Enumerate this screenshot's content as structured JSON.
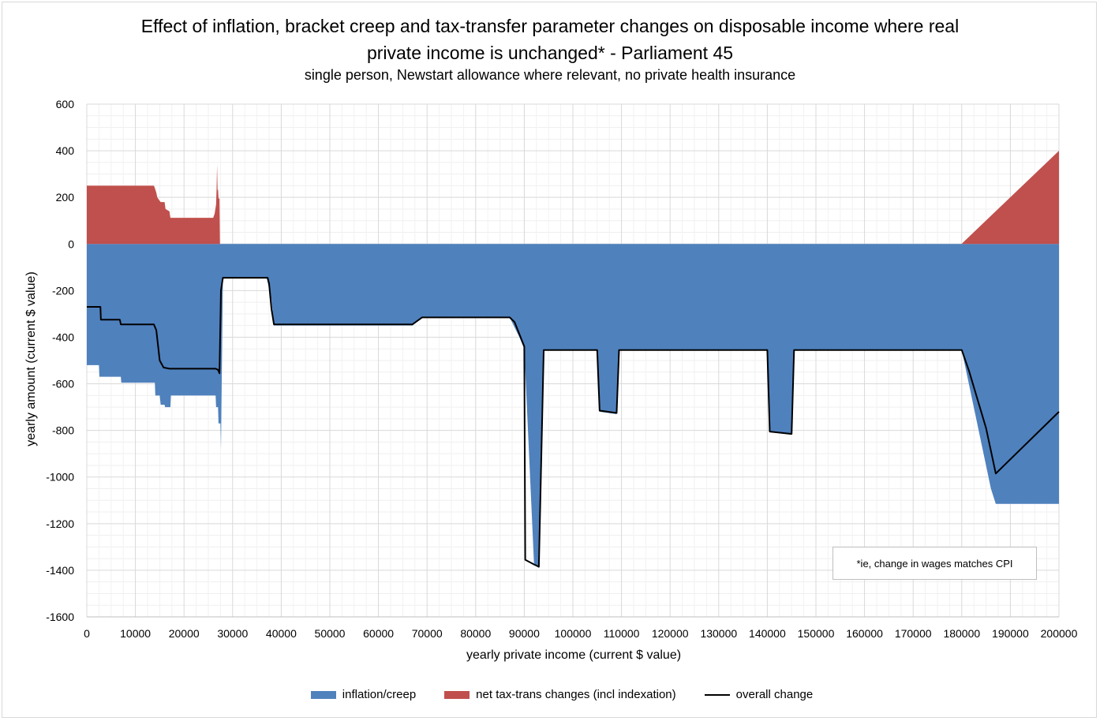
{
  "chart_data": {
    "type": "area",
    "title": "Effect of inflation, bracket creep and tax-transfer parameter changes on disposable income where real private income is unchanged* - Parliament 45",
    "title_line1": "Effect of inflation, bracket creep and tax-transfer parameter changes on disposable income where real",
    "title_line2": "private income is unchanged* - Parliament 45",
    "subtitle": "single person, Newstart allowance where relevant, no private health insurance",
    "xlabel": "yearly private income (current $ value)",
    "ylabel": "yearly amount (current $ value)",
    "xlim": [
      0,
      200000
    ],
    "ylim": [
      -1600,
      600
    ],
    "x_ticks": [
      "0",
      "10000",
      "20000",
      "30000",
      "40000",
      "50000",
      "60000",
      "70000",
      "80000",
      "90000",
      "100000",
      "110000",
      "120000",
      "130000",
      "140000",
      "150000",
      "160000",
      "170000",
      "180000",
      "190000",
      "200000"
    ],
    "y_ticks": [
      "600",
      "400",
      "200",
      "0",
      "-200",
      "-400",
      "-600",
      "-800",
      "-1000",
      "-1200",
      "-1400",
      "-1600"
    ],
    "grid": true,
    "legend_position": "bottom",
    "annotation": "*ie, change in wages matches CPI",
    "colors": {
      "inflation": "#4f81bd",
      "net": "#c0504d",
      "overall": "#000000",
      "grid": "#d9d9d9"
    },
    "series": [
      {
        "name": "inflation/creep",
        "kind": "area",
        "x": [
          0,
          2500,
          2600,
          7000,
          7100,
          14000,
          14100,
          15000,
          15200,
          16000,
          16100,
          17200,
          17300,
          26500,
          26600,
          27000,
          27100,
          27500,
          27600,
          28000,
          37000,
          38000,
          38500,
          67000,
          69000,
          87000,
          89000,
          90000,
          92000,
          93000,
          94000,
          105000,
          105500,
          109000,
          109500,
          140000,
          140500,
          145000,
          145500,
          180000,
          186000,
          187000,
          200000
        ],
        "y": [
          -520,
          -520,
          -570,
          -570,
          -595,
          -595,
          -650,
          -650,
          -690,
          -690,
          -700,
          -700,
          -650,
          -650,
          -700,
          -700,
          -770,
          -770,
          -880,
          -145,
          -145,
          -240,
          -350,
          -350,
          -315,
          -315,
          -400,
          -450,
          -1370,
          -1390,
          -455,
          -455,
          -720,
          -730,
          -455,
          -455,
          -805,
          -815,
          -455,
          -455,
          -1050,
          -1115,
          -1115
        ]
      },
      {
        "name": "net tax-trans changes (incl indexation)",
        "kind": "area",
        "x": [
          0,
          13800,
          14000,
          14300,
          14500,
          15000,
          15200,
          16000,
          16200,
          17000,
          17200,
          26000,
          26300,
          26600,
          26700,
          26800,
          26900,
          27000,
          27100,
          27300,
          27400,
          180000,
          180200,
          200000
        ],
        "y": [
          250,
          250,
          240,
          220,
          200,
          185,
          180,
          180,
          150,
          140,
          112,
          112,
          130,
          170,
          235,
          340,
          230,
          235,
          195,
          195,
          0,
          0,
          5,
          400
        ]
      },
      {
        "name": "overall change",
        "kind": "line",
        "x": [
          0,
          2800,
          2900,
          6800,
          7000,
          13800,
          14300,
          15000,
          15800,
          17000,
          26500,
          27000,
          27300,
          27600,
          28000,
          37200,
          37500,
          38000,
          38500,
          67000,
          69000,
          87000,
          88000,
          90000,
          90200,
          92000,
          93000,
          94000,
          105000,
          105500,
          109000,
          109500,
          140000,
          140500,
          145000,
          145500,
          180000,
          181500,
          183000,
          185000,
          187000,
          200000
        ],
        "y": [
          -270,
          -270,
          -325,
          -325,
          -345,
          -345,
          -370,
          -500,
          -530,
          -535,
          -535,
          -540,
          -555,
          -200,
          -145,
          -145,
          -170,
          -280,
          -345,
          -345,
          -315,
          -315,
          -335,
          -440,
          -1355,
          -1375,
          -1385,
          -455,
          -455,
          -715,
          -725,
          -455,
          -455,
          -805,
          -815,
          -455,
          -455,
          -545,
          -650,
          -790,
          -985,
          -720
        ]
      }
    ]
  }
}
